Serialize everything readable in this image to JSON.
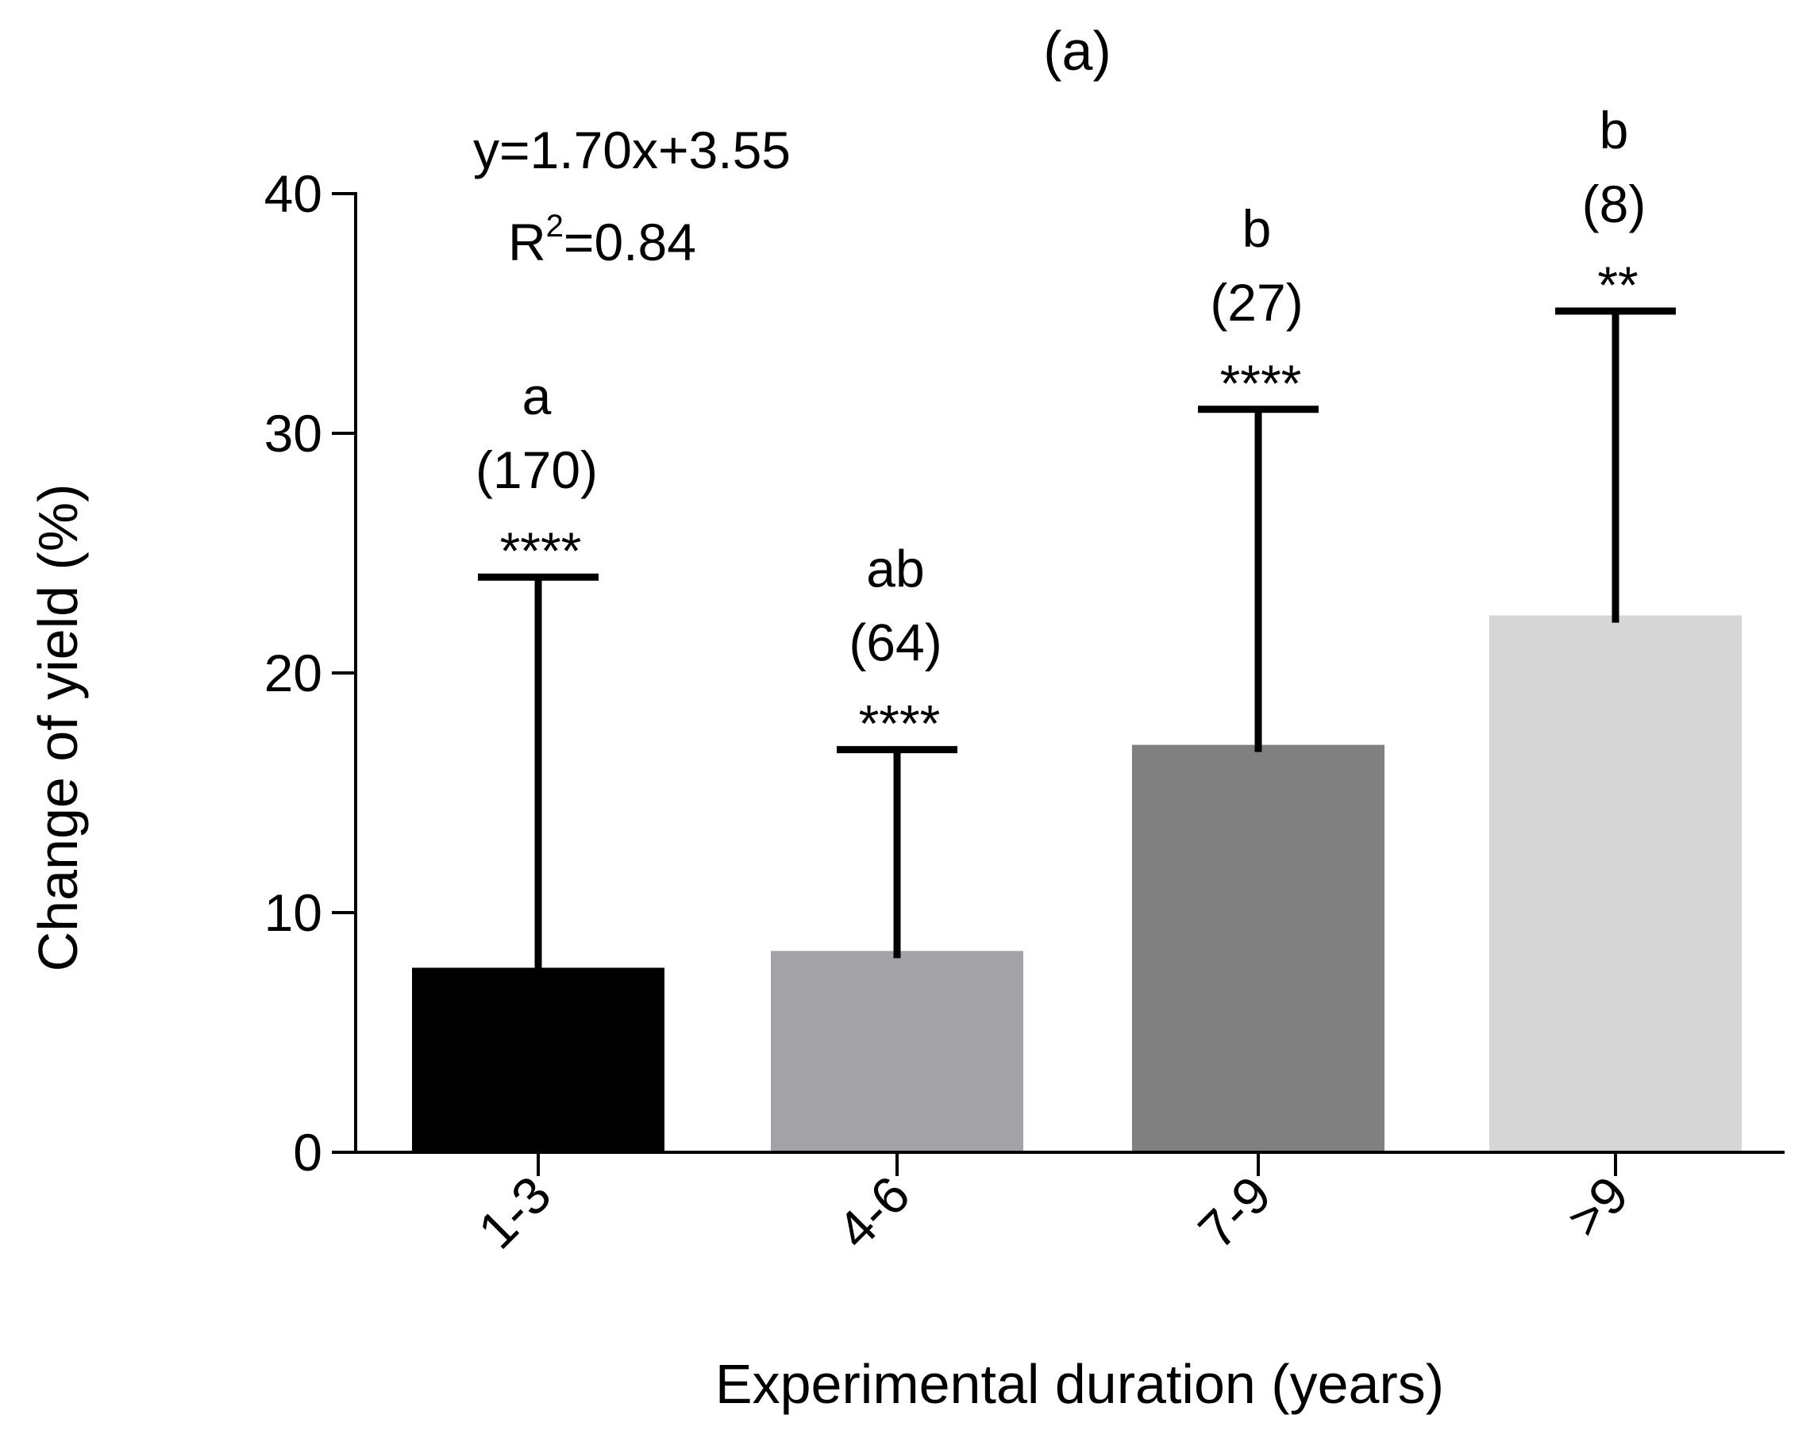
{
  "chart_data": {
    "type": "bar",
    "panel_label": "(a)",
    "title": "",
    "xlabel": "Experimental duration (years)",
    "ylabel": "Change of yield (%)",
    "ylim": [
      0,
      40
    ],
    "yticks": [
      0,
      10,
      20,
      30,
      40
    ],
    "grid": false,
    "categories": [
      "1-3",
      "4-6",
      "7-9",
      ">9"
    ],
    "values": [
      7.7,
      8.4,
      17.0,
      22.4
    ],
    "error_upper": [
      24.0,
      16.8,
      31.0,
      35.1
    ],
    "error_lower": [
      7.7,
      8.1,
      16.7,
      22.1
    ],
    "colors": [
      "#000000",
      "#a3a2a7",
      "#808080",
      "#d6d6d6"
    ],
    "sample_sizes": [
      "(170)",
      "(64)",
      "(27)",
      "(8)"
    ],
    "group_letters": [
      "a",
      "ab",
      "b",
      "b"
    ],
    "significance": [
      "****",
      "****",
      "****",
      "**"
    ],
    "regression": {
      "equation": "y=1.70x+3.55",
      "r2_prefix": "R",
      "r2_superscript": "2",
      "r2_value": "=0.84"
    }
  }
}
